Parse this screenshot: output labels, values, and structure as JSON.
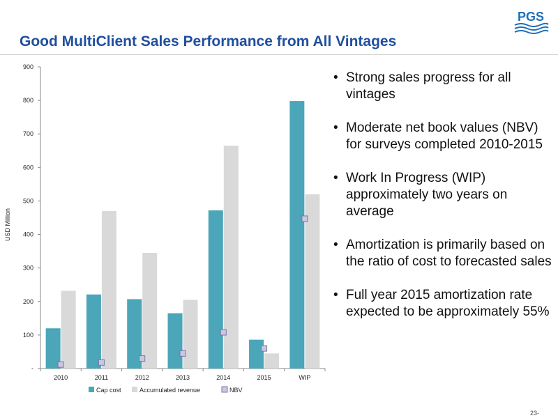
{
  "slide": {
    "title": "Good MultiClient Sales Performance from All Vintages",
    "logo_text": "PGS",
    "page_number": "23-",
    "bullets": [
      "Strong sales progress for all vintages",
      "Moderate net book values (NBV) for surveys completed 2010-2015",
      "Work In Progress (WIP) approximately two years on average",
      "Amortization is primarily based on the ratio of cost to forecasted sales",
      "Full year 2015 amortization rate expected to be approximately 55%"
    ]
  },
  "colors": {
    "title": "#1f4e9e",
    "cap_cost": "#4aa6b8",
    "accumulated_revenue": "#d9d9d9",
    "nbv_fill": "#ccc7e0",
    "nbv_stroke": "#7b76a8"
  },
  "chart_data": {
    "type": "bar",
    "categories": [
      "2010",
      "2011",
      "2012",
      "2013",
      "2014",
      "2015",
      "WIP"
    ],
    "series": [
      {
        "name": "Cap cost",
        "type": "bar",
        "values": [
          120,
          221,
          207,
          165,
          472,
          86,
          798
        ]
      },
      {
        "name": "Accumulated revenue",
        "type": "bar",
        "values": [
          232,
          470,
          345,
          205,
          665,
          45,
          520
        ]
      },
      {
        "name": "NBV",
        "type": "scatter",
        "values": [
          12,
          18,
          30,
          45,
          108,
          60,
          447
        ]
      }
    ],
    "xlabel": "",
    "ylabel": "USD Million",
    "ylim": [
      0,
      900
    ],
    "yticks": [
      0,
      100,
      200,
      300,
      400,
      500,
      600,
      700,
      800,
      900
    ],
    "ytick_labels": [
      "-",
      "100",
      "200",
      "300",
      "400",
      "500",
      "600",
      "700",
      "800",
      "900"
    ],
    "grid": false,
    "legend": "bottom"
  }
}
